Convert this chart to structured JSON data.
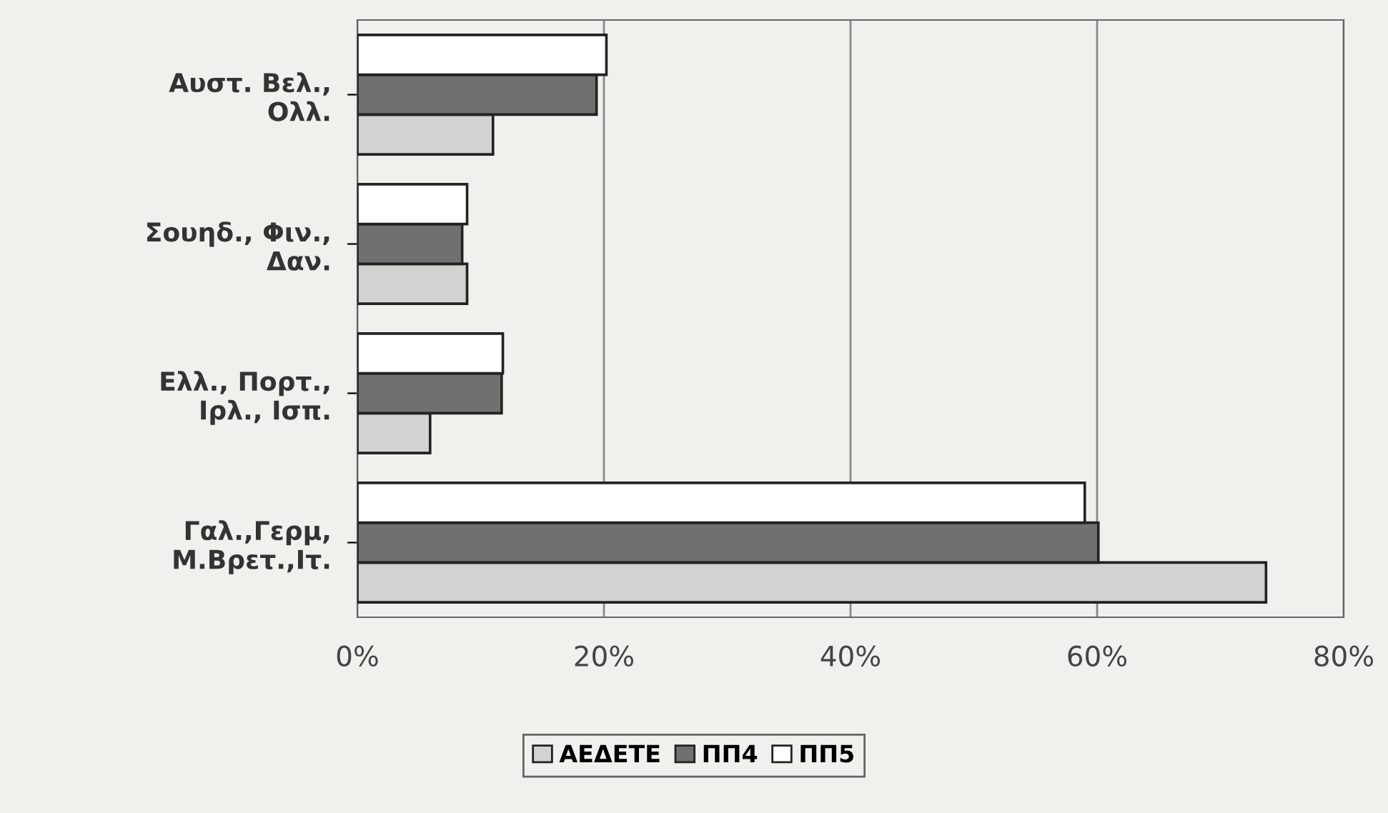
{
  "chart_data": {
    "type": "bar",
    "orientation": "horizontal",
    "categories": [
      "Αυστ. Βελ.,\nΟλλ.",
      "Σουηδ., Φιν.,\nΔαν.",
      "Ελλ., Πορτ.,\nΙρλ., Ισπ.",
      "Γαλ.,Γερμ,\nΜ.Βρετ.,Ιτ."
    ],
    "series": [
      {
        "name": "ΑΕΔΕΤΕ",
        "color": "#d2d2d0",
        "values": [
          11.0,
          8.9,
          5.9,
          73.7
        ]
      },
      {
        "name": "ΠΠ4",
        "color": "#707070",
        "values": [
          19.4,
          8.5,
          11.7,
          60.1
        ]
      },
      {
        "name": "ΠΠ5",
        "color": "#ffffff",
        "values": [
          20.2,
          8.9,
          11.8,
          59.0
        ]
      }
    ],
    "xlim": [
      0,
      80
    ],
    "xticks": [
      {
        "value": 0,
        "label": "0%"
      },
      {
        "value": 20,
        "label": "20%"
      },
      {
        "value": 40,
        "label": "40%"
      },
      {
        "value": 60,
        "label": "60%"
      },
      {
        "value": 80,
        "label": "80%"
      }
    ],
    "grid": "x",
    "legend": "bottom"
  }
}
